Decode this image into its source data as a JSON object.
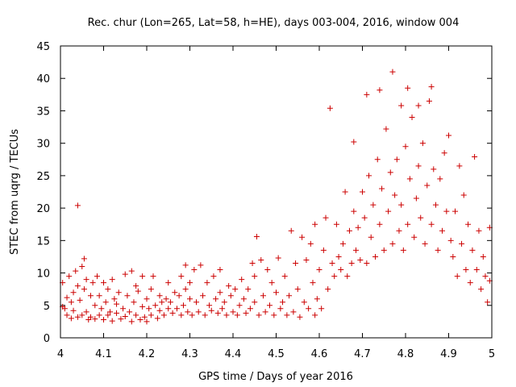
{
  "chart_data": {
    "type": "scatter",
    "title": "Rec. chur (Lon=265, Lat=58, h=HE), days 003-004, 2016, window 004",
    "xlabel": "GPS time / Days of year 2016",
    "ylabel": "STEC from uqrg / TECUs",
    "xlim": [
      4,
      5
    ],
    "ylim": [
      0,
      45
    ],
    "xticks": [
      "4",
      "4.1",
      "4.2",
      "4.3",
      "4.4",
      "4.5",
      "4.6",
      "4.7",
      "4.8",
      "4.9",
      "5"
    ],
    "yticks": [
      "0",
      "5",
      "10",
      "15",
      "20",
      "25",
      "30",
      "35",
      "40",
      "45"
    ],
    "grid": false,
    "marker": "plus",
    "color": "#cc0000",
    "series": [
      {
        "points": [
          [
            4.005,
            4.8
          ],
          [
            4.005,
            8.5
          ],
          [
            4.01,
            4.5
          ],
          [
            4.015,
            6.2
          ],
          [
            4.015,
            3.5
          ],
          [
            4.02,
            9.5
          ],
          [
            4.025,
            5.5
          ],
          [
            4.025,
            3.0
          ],
          [
            4.03,
            7.0
          ],
          [
            4.03,
            4.2
          ],
          [
            4.035,
            10.3
          ],
          [
            4.04,
            8.0
          ],
          [
            4.04,
            3.2
          ],
          [
            4.04,
            20.4
          ],
          [
            4.045,
            5.8
          ],
          [
            4.05,
            11.0
          ],
          [
            4.05,
            3.5
          ],
          [
            4.055,
            7.5
          ],
          [
            4.055,
            12.2
          ],
          [
            4.06,
            4.0
          ],
          [
            4.06,
            9.0
          ],
          [
            4.065,
            2.8
          ],
          [
            4.07,
            6.5
          ],
          [
            4.07,
            3.2
          ],
          [
            4.075,
            8.5
          ],
          [
            4.08,
            5.0
          ],
          [
            4.08,
            2.9
          ],
          [
            4.085,
            9.5
          ],
          [
            4.09,
            6.5
          ],
          [
            4.09,
            3.5
          ],
          [
            4.095,
            4.5
          ],
          [
            4.1,
            8.5
          ],
          [
            4.1,
            2.8
          ],
          [
            4.105,
            5.5
          ],
          [
            4.11,
            3.5
          ],
          [
            4.11,
            7.5
          ],
          [
            4.115,
            4.0
          ],
          [
            4.12,
            9.0
          ],
          [
            4.12,
            2.6
          ],
          [
            4.125,
            6.0
          ],
          [
            4.13,
            3.8
          ],
          [
            4.13,
            5.2
          ],
          [
            4.135,
            7.0
          ],
          [
            4.14,
            2.9
          ],
          [
            4.145,
            4.5
          ],
          [
            4.15,
            9.8
          ],
          [
            4.15,
            3.3
          ],
          [
            4.155,
            6.5
          ],
          [
            4.16,
            4.0
          ],
          [
            4.165,
            10.3
          ],
          [
            4.165,
            2.5
          ],
          [
            4.17,
            5.5
          ],
          [
            4.175,
            8.0
          ],
          [
            4.175,
            3.5
          ],
          [
            4.18,
            7.2
          ],
          [
            4.185,
            2.8
          ],
          [
            4.19,
            4.8
          ],
          [
            4.19,
            9.5
          ],
          [
            4.195,
            3.2
          ],
          [
            4.2,
            6.0
          ],
          [
            4.2,
            2.5
          ],
          [
            4.205,
            4.5
          ],
          [
            4.21,
            7.5
          ],
          [
            4.21,
            3.5
          ],
          [
            4.215,
            9.5
          ],
          [
            4.22,
            5.0
          ],
          [
            4.225,
            3.0
          ],
          [
            4.23,
            6.5
          ],
          [
            4.23,
            4.2
          ],
          [
            4.235,
            5.5
          ],
          [
            4.24,
            3.5
          ],
          [
            4.245,
            6.0
          ],
          [
            4.25,
            4.5
          ],
          [
            4.25,
            8.5
          ],
          [
            4.255,
            5.5
          ],
          [
            4.26,
            3.8
          ],
          [
            4.265,
            7.0
          ],
          [
            4.27,
            4.5
          ],
          [
            4.275,
            6.5
          ],
          [
            4.28,
            3.5
          ],
          [
            4.28,
            9.5
          ],
          [
            4.285,
            5.0
          ],
          [
            4.29,
            7.5
          ],
          [
            4.29,
            11.2
          ],
          [
            4.295,
            4.0
          ],
          [
            4.3,
            6.0
          ],
          [
            4.3,
            8.5
          ],
          [
            4.305,
            3.5
          ],
          [
            4.31,
            10.5
          ],
          [
            4.315,
            5.5
          ],
          [
            4.32,
            4.0
          ],
          [
            4.325,
            11.2
          ],
          [
            4.33,
            6.5
          ],
          [
            4.335,
            3.5
          ],
          [
            4.34,
            8.5
          ],
          [
            4.345,
            5.0
          ],
          [
            4.35,
            4.2
          ],
          [
            4.355,
            9.5
          ],
          [
            4.36,
            6.0
          ],
          [
            4.365,
            3.8
          ],
          [
            4.37,
            7.0
          ],
          [
            4.37,
            10.5
          ],
          [
            4.375,
            4.5
          ],
          [
            4.38,
            5.5
          ],
          [
            4.385,
            3.5
          ],
          [
            4.39,
            8.0
          ],
          [
            4.395,
            6.5
          ],
          [
            4.4,
            4.0
          ],
          [
            4.405,
            7.5
          ],
          [
            4.41,
            3.5
          ],
          [
            4.415,
            5.0
          ],
          [
            4.42,
            9.0
          ],
          [
            4.425,
            6.0
          ],
          [
            4.43,
            3.8
          ],
          [
            4.435,
            7.5
          ],
          [
            4.44,
            4.5
          ],
          [
            4.445,
            11.5
          ],
          [
            4.45,
            5.5
          ],
          [
            4.45,
            9.5
          ],
          [
            4.455,
            15.6
          ],
          [
            4.46,
            3.5
          ],
          [
            4.465,
            12.0
          ],
          [
            4.47,
            6.5
          ],
          [
            4.475,
            4.0
          ],
          [
            4.48,
            10.5
          ],
          [
            4.485,
            5.0
          ],
          [
            4.49,
            8.5
          ],
          [
            4.495,
            3.5
          ],
          [
            4.5,
            7.0
          ],
          [
            4.505,
            12.3
          ],
          [
            4.51,
            4.5
          ],
          [
            4.515,
            5.5
          ],
          [
            4.52,
            9.5
          ],
          [
            4.525,
            3.5
          ],
          [
            4.53,
            6.5
          ],
          [
            4.535,
            16.5
          ],
          [
            4.54,
            4.0
          ],
          [
            4.545,
            11.5
          ],
          [
            4.55,
            7.5
          ],
          [
            4.555,
            3.2
          ],
          [
            4.56,
            15.5
          ],
          [
            4.565,
            5.5
          ],
          [
            4.57,
            12.0
          ],
          [
            4.575,
            4.5
          ],
          [
            4.58,
            14.5
          ],
          [
            4.585,
            8.5
          ],
          [
            4.59,
            17.5
          ],
          [
            4.59,
            3.5
          ],
          [
            4.595,
            6.0
          ],
          [
            4.6,
            10.5
          ],
          [
            4.605,
            4.5
          ],
          [
            4.61,
            13.5
          ],
          [
            4.615,
            18.5
          ],
          [
            4.62,
            7.5
          ],
          [
            4.625,
            35.4
          ],
          [
            4.63,
            11.5
          ],
          [
            4.635,
            9.5
          ],
          [
            4.64,
            17.5
          ],
          [
            4.645,
            12.5
          ],
          [
            4.65,
            10.5
          ],
          [
            4.655,
            14.5
          ],
          [
            4.66,
            22.5
          ],
          [
            4.665,
            9.5
          ],
          [
            4.67,
            16.5
          ],
          [
            4.675,
            11.5
          ],
          [
            4.68,
            19.5
          ],
          [
            4.68,
            30.2
          ],
          [
            4.685,
            13.5
          ],
          [
            4.69,
            17.0
          ],
          [
            4.695,
            12.0
          ],
          [
            4.7,
            22.5
          ],
          [
            4.705,
            18.5
          ],
          [
            4.71,
            37.5
          ],
          [
            4.71,
            11.5
          ],
          [
            4.715,
            25.0
          ],
          [
            4.72,
            15.5
          ],
          [
            4.725,
            20.5
          ],
          [
            4.73,
            12.5
          ],
          [
            4.735,
            27.5
          ],
          [
            4.74,
            38.2
          ],
          [
            4.74,
            17.5
          ],
          [
            4.745,
            23.0
          ],
          [
            4.75,
            13.5
          ],
          [
            4.755,
            32.2
          ],
          [
            4.76,
            19.5
          ],
          [
            4.765,
            25.5
          ],
          [
            4.77,
            41.0
          ],
          [
            4.77,
            14.5
          ],
          [
            4.775,
            22.0
          ],
          [
            4.78,
            27.5
          ],
          [
            4.785,
            16.5
          ],
          [
            4.79,
            35.8
          ],
          [
            4.79,
            20.5
          ],
          [
            4.795,
            13.5
          ],
          [
            4.8,
            29.5
          ],
          [
            4.805,
            38.5
          ],
          [
            4.805,
            17.5
          ],
          [
            4.81,
            24.5
          ],
          [
            4.815,
            34.0
          ],
          [
            4.82,
            15.5
          ],
          [
            4.825,
            21.5
          ],
          [
            4.83,
            35.8
          ],
          [
            4.83,
            26.5
          ],
          [
            4.835,
            18.5
          ],
          [
            4.84,
            30.0
          ],
          [
            4.845,
            14.5
          ],
          [
            4.85,
            23.5
          ],
          [
            4.855,
            36.5
          ],
          [
            4.86,
            38.7
          ],
          [
            4.86,
            17.5
          ],
          [
            4.865,
            26.0
          ],
          [
            4.87,
            20.5
          ],
          [
            4.875,
            13.5
          ],
          [
            4.88,
            24.5
          ],
          [
            4.885,
            16.5
          ],
          [
            4.89,
            28.5
          ],
          [
            4.895,
            19.5
          ],
          [
            4.9,
            31.2
          ],
          [
            4.905,
            15.0
          ],
          [
            4.91,
            12.5
          ],
          [
            4.915,
            19.5
          ],
          [
            4.92,
            9.5
          ],
          [
            4.925,
            26.5
          ],
          [
            4.93,
            14.5
          ],
          [
            4.935,
            22.0
          ],
          [
            4.94,
            10.5
          ],
          [
            4.945,
            17.5
          ],
          [
            4.95,
            8.5
          ],
          [
            4.955,
            13.5
          ],
          [
            4.96,
            27.9
          ],
          [
            4.965,
            10.5
          ],
          [
            4.97,
            16.5
          ],
          [
            4.975,
            7.5
          ],
          [
            4.98,
            12.5
          ],
          [
            4.985,
            9.5
          ],
          [
            4.99,
            5.5
          ],
          [
            4.995,
            8.8
          ],
          [
            4.995,
            17.0
          ]
        ]
      }
    ]
  }
}
